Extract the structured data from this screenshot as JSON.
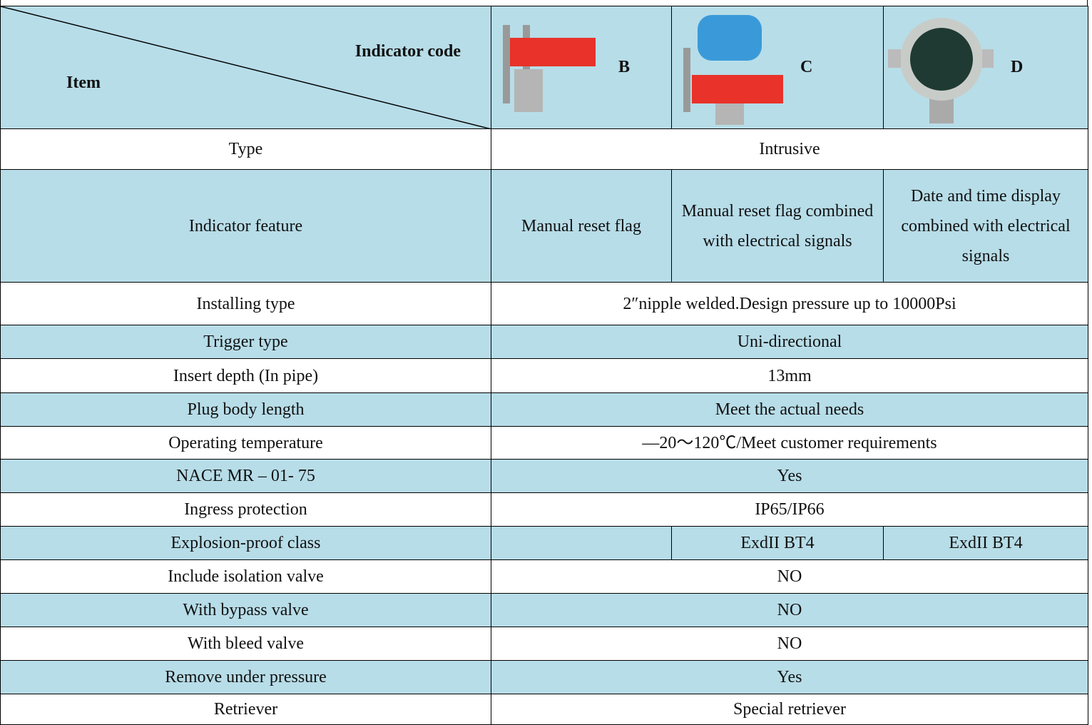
{
  "header": {
    "item": "Item",
    "indicator_code": "Indicator code",
    "codes": [
      "B",
      "C",
      "D"
    ]
  },
  "rows": [
    {
      "label": "Type",
      "values": [
        "Intrusive"
      ]
    },
    {
      "label": "Indicator feature",
      "values": [
        "Manual reset flag",
        "Manual reset flag combined with electrical signals",
        "Date and time display combined with electrical signals"
      ]
    },
    {
      "label": "Installing type",
      "values": [
        "2″nipple welded.Design pressure up to 10000Psi"
      ]
    },
    {
      "label": "Trigger type",
      "values": [
        "Uni-directional"
      ]
    },
    {
      "label": "Insert depth (In pipe)",
      "values": [
        "13mm"
      ]
    },
    {
      "label": "Plug body length",
      "values": [
        "Meet the actual needs"
      ]
    },
    {
      "label": "Operating temperature",
      "values": [
        "—20～120℃/Meet customer requirements"
      ]
    },
    {
      "label": "NACE MR – 01- 75",
      "values": [
        "Yes"
      ]
    },
    {
      "label": "Ingress protection",
      "values": [
        "IP65/IP66"
      ]
    },
    {
      "label": "Explosion-proof class",
      "values": [
        "ExdII BT4",
        "ExdII BT4"
      ]
    },
    {
      "label": "Include isolation valve",
      "values": [
        "NO"
      ]
    },
    {
      "label": "With bypass valve",
      "values": [
        "NO"
      ]
    },
    {
      "label": "With bleed valve",
      "values": [
        "NO"
      ]
    },
    {
      "label": "Remove under pressure",
      "values": [
        "Yes"
      ]
    },
    {
      "label": "Retriever",
      "values": [
        "Special retriever"
      ]
    }
  ]
}
